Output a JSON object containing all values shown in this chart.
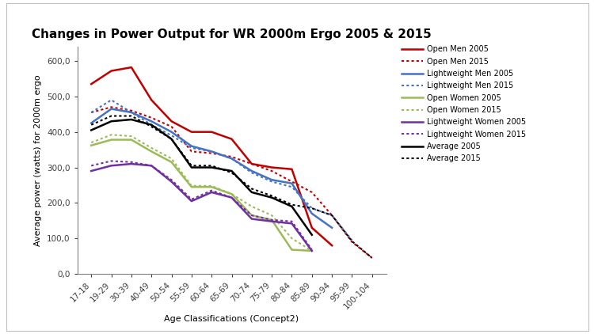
{
  "title": "Changes in Power Output for WR 2000m Ergo 2005 & 2015",
  "xlabel": "Age Classifications (Concept2)",
  "ylabel": "Average power (watts) for 2000m ergo",
  "categories": [
    "17-18",
    "19-29",
    "30-39",
    "40-49",
    "50-54",
    "55-59",
    "60-64",
    "65-69",
    "70-74",
    "75-79",
    "80-84",
    "85-89",
    "90-94",
    "95-99",
    "100-104"
  ],
  "ylim": [
    0,
    640
  ],
  "yticks": [
    0,
    100,
    200,
    300,
    400,
    500,
    600
  ],
  "ytick_labels": [
    "0,0",
    "100,0",
    "200,0",
    "300,0",
    "400,0",
    "500,0",
    "600,0"
  ],
  "series": {
    "Open Men 2005": {
      "values": [
        535,
        572,
        582,
        490,
        430,
        400,
        400,
        380,
        310,
        300,
        295,
        130,
        80,
        null,
        null
      ],
      "color": "#c00000",
      "linestyle": "solid",
      "linewidth": 1.8
    },
    "Open Men 2015": {
      "values": [
        455,
        470,
        460,
        440,
        415,
        345,
        340,
        330,
        310,
        290,
        260,
        230,
        165,
        90,
        45
      ],
      "color": "#c00000",
      "linestyle": "dotted",
      "linewidth": 1.5
    },
    "Lightweight Men 2005": {
      "values": [
        425,
        465,
        455,
        430,
        400,
        360,
        345,
        325,
        290,
        265,
        255,
        170,
        130,
        null,
        null
      ],
      "color": "#4472c4",
      "linestyle": "solid",
      "linewidth": 1.8
    },
    "Lightweight Men 2015": {
      "values": [
        455,
        490,
        455,
        420,
        390,
        355,
        345,
        325,
        285,
        260,
        245,
        185,
        165,
        95,
        null
      ],
      "color": "#4472c4",
      "linestyle": "dotted",
      "linewidth": 1.5
    },
    "Open Women 2005": {
      "values": [
        362,
        378,
        378,
        345,
        315,
        245,
        245,
        225,
        165,
        152,
        68,
        65,
        null,
        null,
        null
      ],
      "color": "#9bbb59",
      "linestyle": "solid",
      "linewidth": 1.8
    },
    "Open Women 2015": {
      "values": [
        370,
        392,
        388,
        355,
        325,
        248,
        248,
        225,
        190,
        165,
        100,
        65,
        null,
        null,
        null
      ],
      "color": "#9bbb59",
      "linestyle": "dotted",
      "linewidth": 1.5
    },
    "Lightweight Women 2005": {
      "values": [
        290,
        305,
        310,
        305,
        260,
        205,
        230,
        215,
        155,
        148,
        142,
        65,
        null,
        null,
        null
      ],
      "color": "#7030a0",
      "linestyle": "solid",
      "linewidth": 1.8
    },
    "Lightweight Women 2015": {
      "values": [
        305,
        318,
        315,
        305,
        265,
        210,
        235,
        215,
        165,
        152,
        148,
        68,
        null,
        null,
        null
      ],
      "color": "#7030a0",
      "linestyle": "dotted",
      "linewidth": 1.5
    },
    "Average 2005": {
      "values": [
        405,
        430,
        435,
        420,
        380,
        300,
        300,
        290,
        230,
        215,
        190,
        110,
        null,
        null,
        null
      ],
      "color": "#000000",
      "linestyle": "solid",
      "linewidth": 1.8
    },
    "Average 2015": {
      "values": [
        420,
        445,
        445,
        415,
        380,
        305,
        305,
        285,
        240,
        220,
        195,
        185,
        165,
        92,
        45
      ],
      "color": "#000000",
      "linestyle": "dotted",
      "linewidth": 1.5
    }
  },
  "legend_order": [
    "Open Men 2005",
    "Open Men 2015",
    "Lightweight Men 2005",
    "Lightweight Men 2015",
    "Open Women 2005",
    "Open Women 2015",
    "Lightweight Women 2005",
    "Lightweight Women 2015",
    "Average 2005",
    "Average 2015"
  ],
  "outer_bg": "#ffffff",
  "inner_bg": "#ffffff",
  "frame_color": "#d0d0d0",
  "title_fontsize": 11,
  "axis_label_fontsize": 8,
  "tick_fontsize": 7.5,
  "legend_fontsize": 7
}
